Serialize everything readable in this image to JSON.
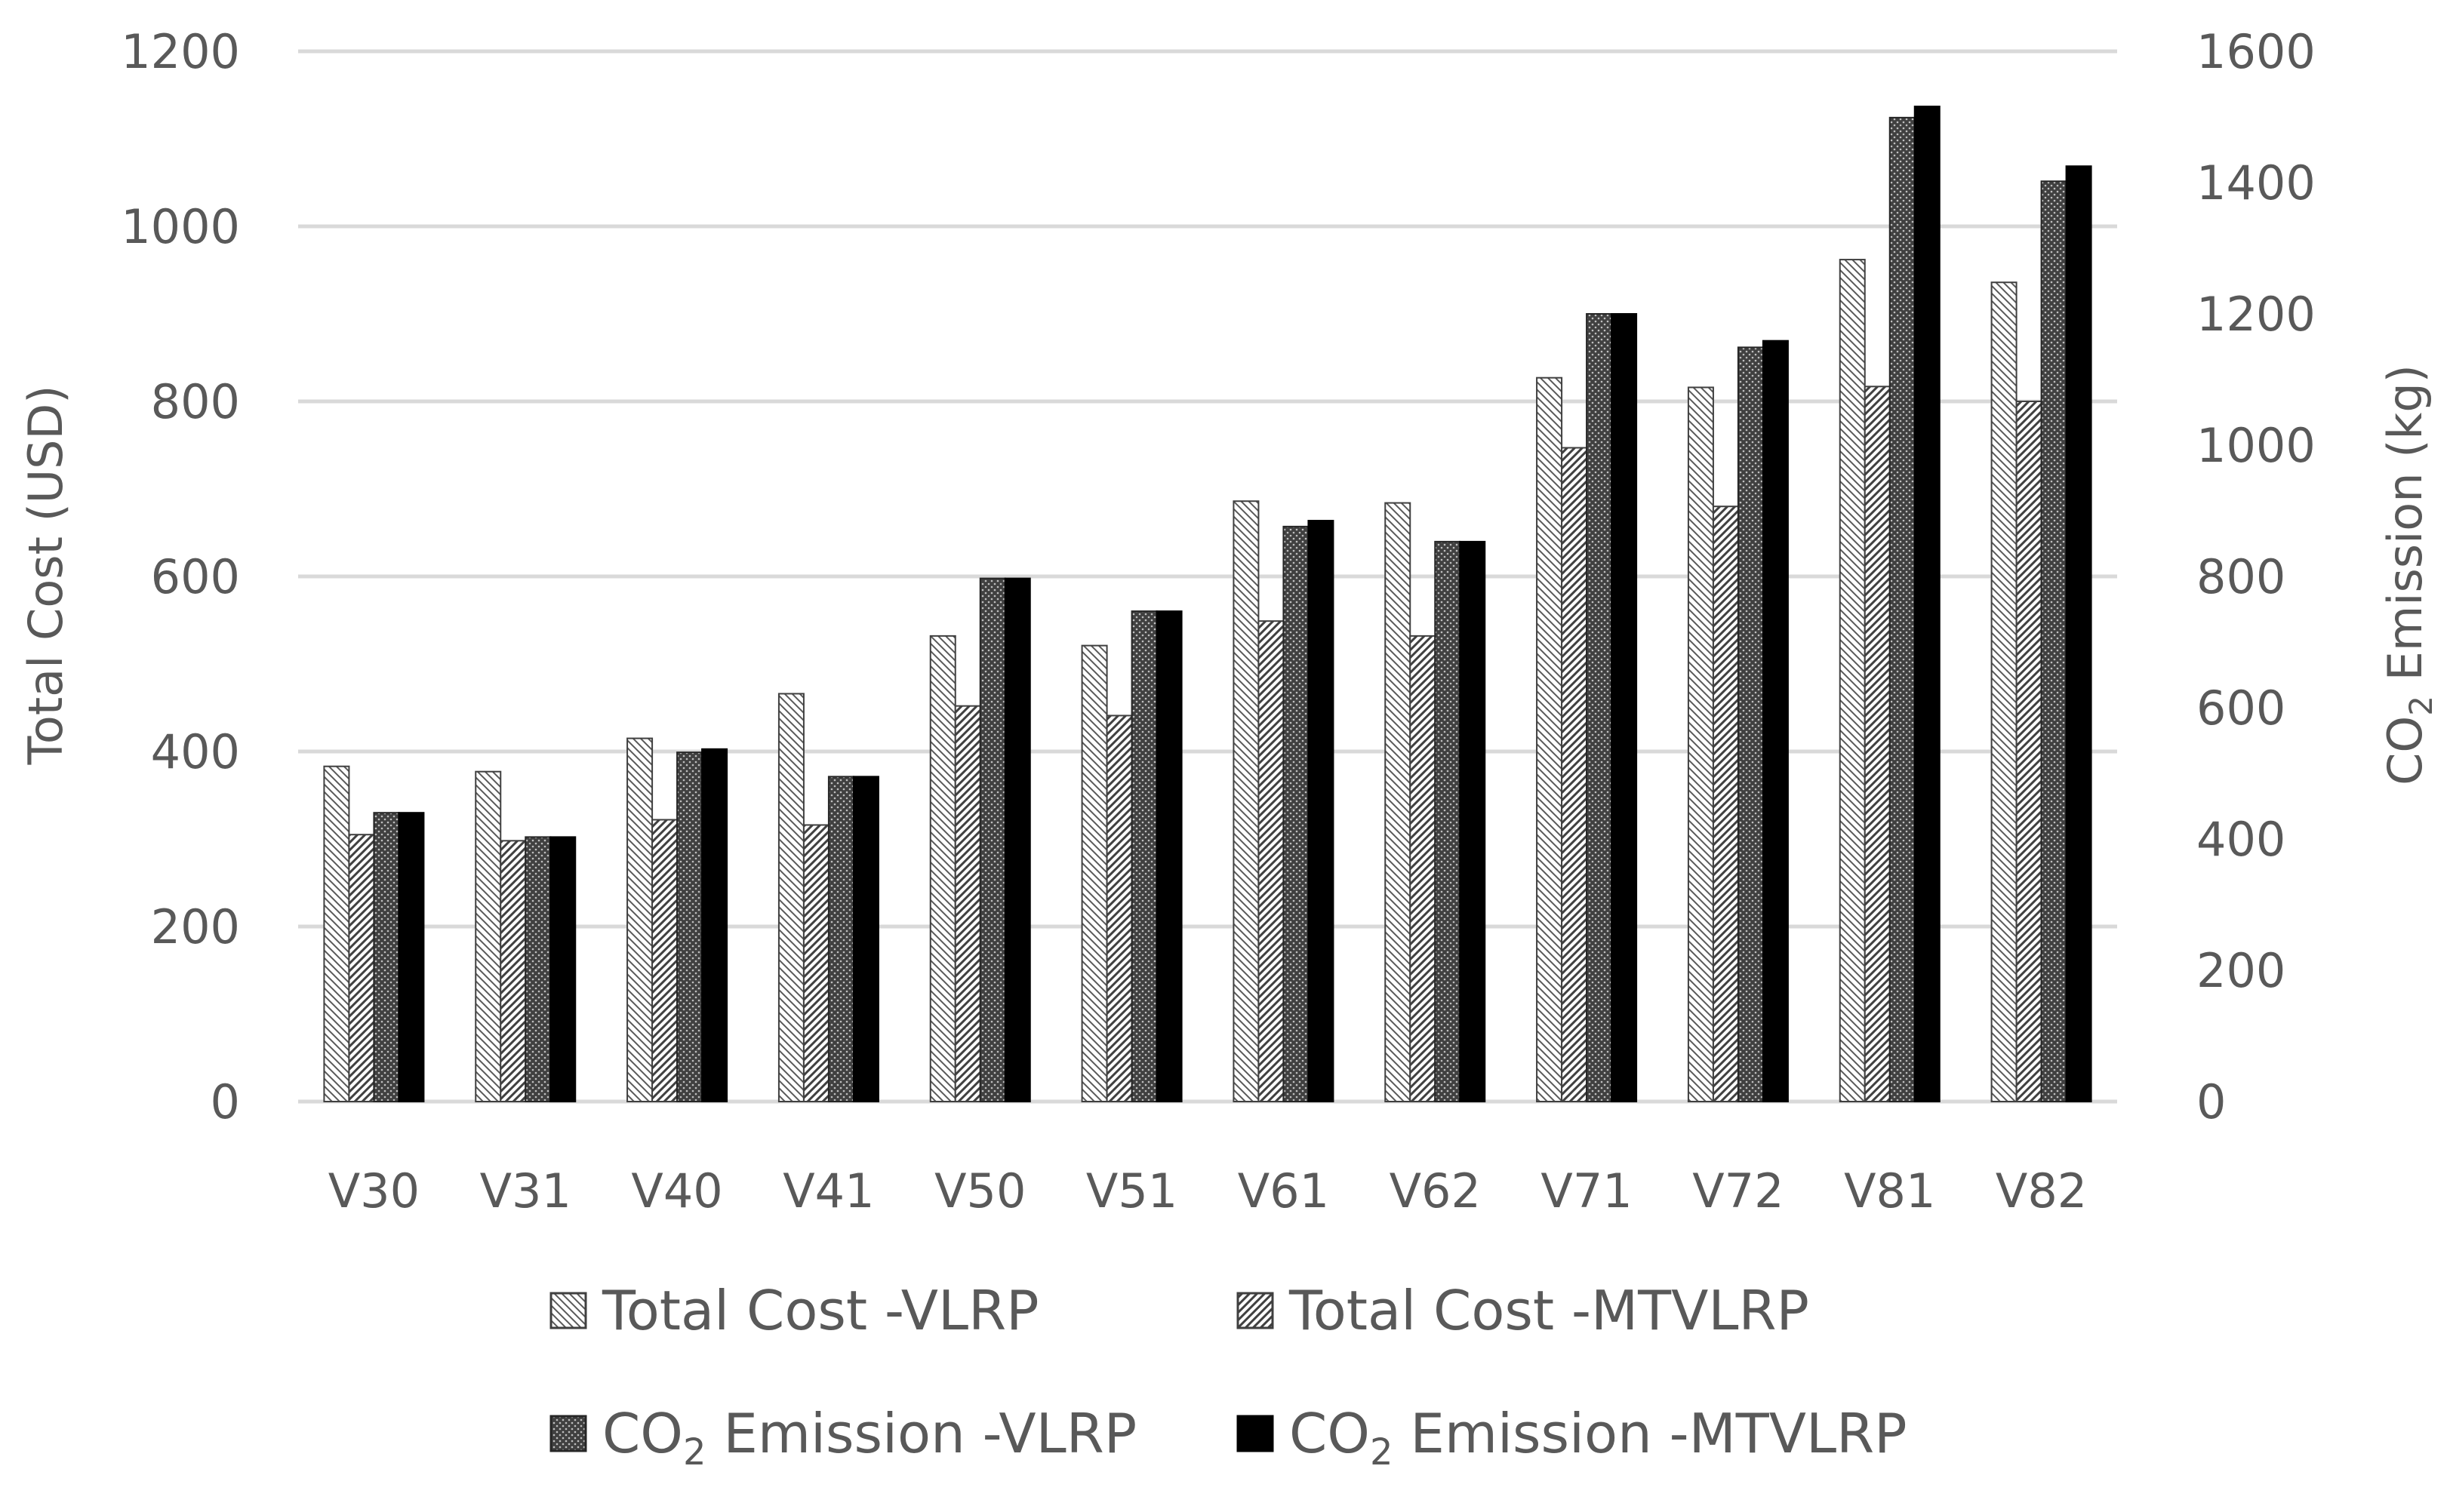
{
  "chart_data": {
    "type": "bar",
    "title": "",
    "categories": [
      "V30",
      "V31",
      "V40",
      "V41",
      "V50",
      "V51",
      "V61",
      "V62",
      "V71",
      "V72",
      "V81",
      "V82"
    ],
    "y_left": {
      "label": "Total Cost (USD)",
      "range": [
        0,
        1200
      ],
      "ticks": [
        "0",
        "200",
        "400",
        "600",
        "800",
        "1000",
        "1200"
      ]
    },
    "y_right": {
      "label_main": "CO",
      "label_sub": "2",
      "label_rest": " Emission (kg)",
      "range": [
        0,
        1600
      ],
      "ticks": [
        "0",
        "200",
        "400",
        "600",
        "800",
        "1000",
        "1200",
        "1400",
        "1600"
      ]
    },
    "grid": true,
    "legend_position": "bottom",
    "series": [
      {
        "name": "Total Cost -VLRP",
        "axis": "left",
        "pattern": "backslash-hatch",
        "values": [
          383,
          377,
          415,
          466,
          532,
          521,
          686,
          684,
          827,
          816,
          962,
          936
        ]
      },
      {
        "name": "Total Cost -MTVLRP",
        "axis": "left",
        "pattern": "slash-hatch",
        "values": [
          305,
          298,
          322,
          316,
          452,
          441,
          549,
          532,
          747,
          680,
          817,
          800
        ]
      },
      {
        "name": "CO2 Emission -VLRP",
        "axis": "right",
        "pattern": "dark-dots",
        "values": [
          440,
          403,
          532,
          495,
          797,
          747,
          876,
          853,
          1200,
          1149,
          1499,
          1402
        ]
      },
      {
        "name": "CO2 Emission -MTVLRP",
        "axis": "right",
        "pattern": "solid-black",
        "values": [
          440,
          403,
          537,
          495,
          797,
          747,
          885,
          853,
          1200,
          1159,
          1516,
          1425
        ]
      }
    ],
    "legend": [
      {
        "main": "Total Cost -VLRP",
        "sub": "",
        "rest": ""
      },
      {
        "main": "Total Cost -MTVLRP",
        "sub": "",
        "rest": ""
      },
      {
        "main": "CO",
        "sub": "2",
        "rest": " Emission -VLRP"
      },
      {
        "main": "CO",
        "sub": "2",
        "rest": " Emission -MTVLRP"
      }
    ]
  }
}
